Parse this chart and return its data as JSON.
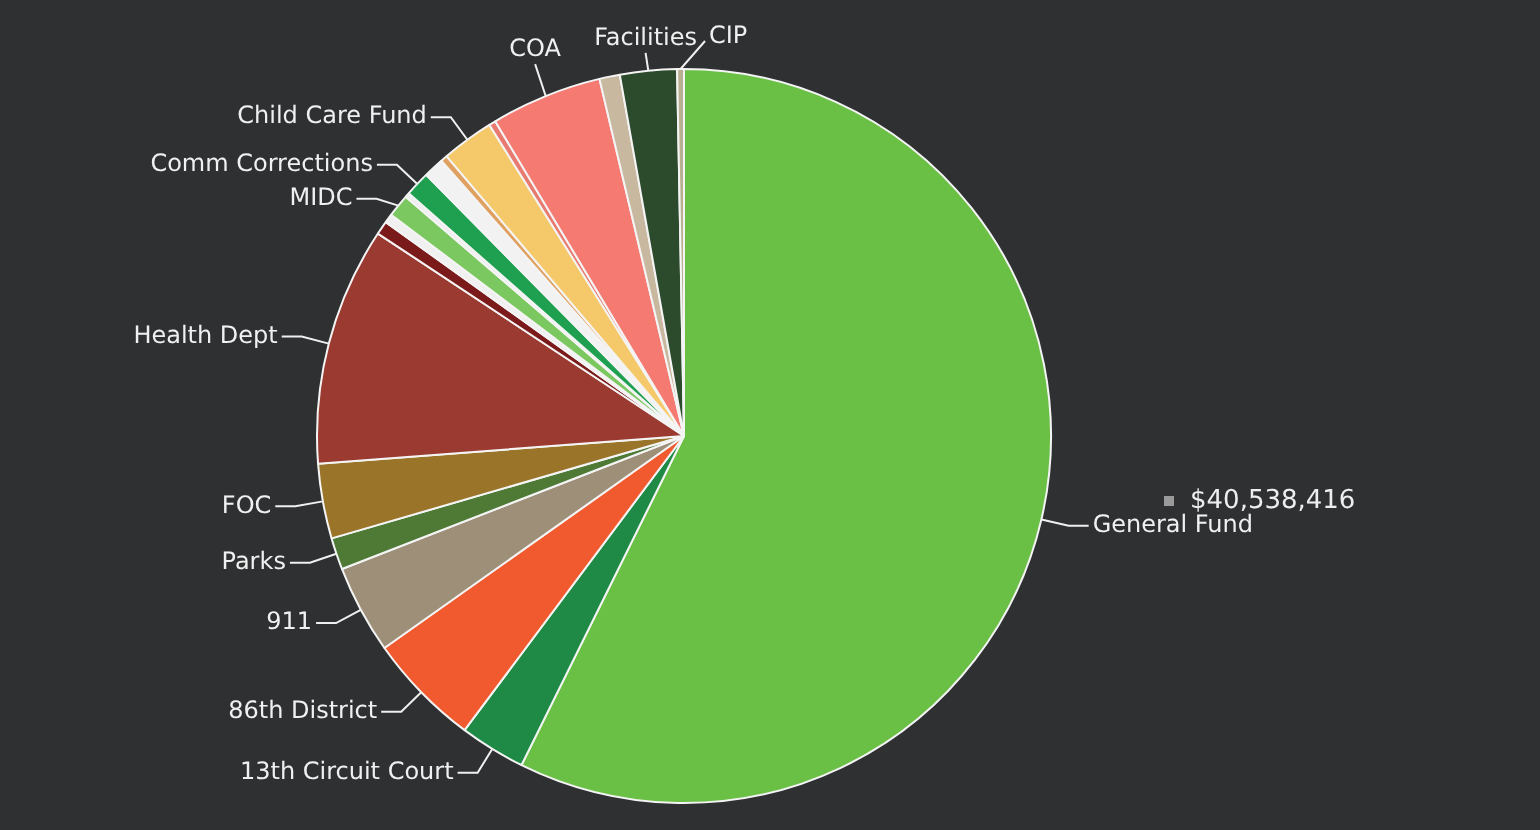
{
  "chart_data": {
    "type": "pie",
    "categories": [
      "General Fund",
      "13th Circuit Court",
      "86th District",
      "911",
      "Parks",
      "FOC",
      "Health Dept",
      null,
      null,
      "MIDC",
      null,
      "Comm Corrections",
      null,
      null,
      "Child Care Fund",
      null,
      "COA",
      null,
      "Facilities",
      "CIP"
    ],
    "values": [
      57.3,
      2.9,
      5.0,
      3.9,
      1.4,
      3.3,
      10.5,
      0.6,
      0.4,
      1.0,
      0.2,
      1.1,
      0.9,
      0.3,
      2.3,
      0.3,
      4.9,
      0.9,
      2.5,
      0.3
    ],
    "colors": [
      "#6abf45",
      "#1e8a45",
      "#f05a2e",
      "#9e8f78",
      "#4e7a36",
      "#9a7428",
      "#9a3a30",
      "#7a1a1a",
      "#f0f0f0",
      "#7cc860",
      "#eeeeee",
      "#1fa050",
      "#f2f2f2",
      "#e0a060",
      "#f5c96a",
      "#e87a70",
      "#f47a72",
      "#c8b8a0",
      "#2c4a2c",
      "#b8b090"
    ],
    "annotations": [
      "$40,538,416"
    ]
  }
}
